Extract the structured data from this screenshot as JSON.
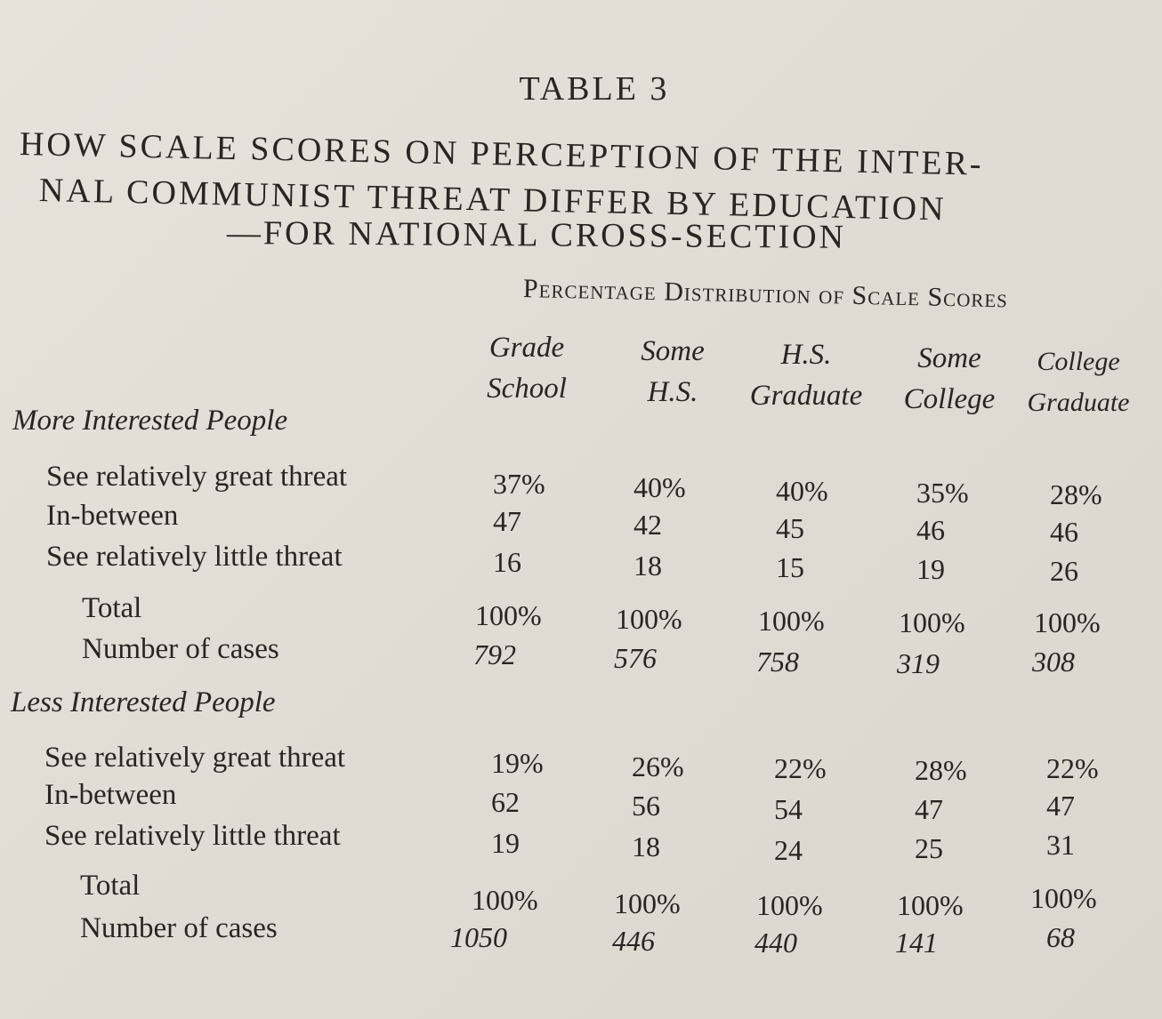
{
  "table": {
    "label": "TABLE 3",
    "title_lines": [
      "HOW SCALE SCORES ON PERCEPTION OF THE INTER-",
      "NAL COMMUNIST THREAT DIFFER BY EDUCATION",
      "—FOR NATIONAL CROSS-SECTION"
    ],
    "distribution_heading": "Percentage Distribution of Scale Scores",
    "columns": [
      {
        "line1": "Grade",
        "line2": "School"
      },
      {
        "line1": "Some",
        "line2": "H.S."
      },
      {
        "line1": "H.S.",
        "line2": "Graduate"
      },
      {
        "line1": "Some",
        "line2": "College"
      },
      {
        "line1": "College",
        "line2": "Graduate"
      }
    ],
    "sections": [
      {
        "label": "More Interested People",
        "rows": [
          {
            "label": "See relatively great threat",
            "values": [
              "37%",
              "40%",
              "40%",
              "35%",
              "28%"
            ]
          },
          {
            "label": "In-between",
            "values": [
              "47",
              "42",
              "45",
              "46",
              "46"
            ]
          },
          {
            "label": "See relatively little threat",
            "values": [
              "16",
              "18",
              "15",
              "19",
              "26"
            ]
          },
          {
            "label": "Total",
            "values": [
              "100%",
              "100%",
              "100%",
              "100%",
              "100%"
            ]
          },
          {
            "label": "Number of cases",
            "values": [
              "792",
              "576",
              "758",
              "319",
              "308"
            ]
          }
        ]
      },
      {
        "label": "Less Interested People",
        "rows": [
          {
            "label": "See relatively great threat",
            "values": [
              "19%",
              "26%",
              "22%",
              "28%",
              "22%"
            ]
          },
          {
            "label": "In-between",
            "values": [
              "62",
              "56",
              "54",
              "47",
              "47"
            ]
          },
          {
            "label": "See relatively little threat",
            "values": [
              "19",
              "18",
              "24",
              "25",
              "31"
            ]
          },
          {
            "label": "Total",
            "values": [
              "100%",
              "100%",
              "100%",
              "100%",
              "100%"
            ]
          },
          {
            "label": "Number of cases",
            "values": [
              "1050",
              "446",
              "440",
              "141",
              "68"
            ]
          }
        ]
      }
    ]
  }
}
